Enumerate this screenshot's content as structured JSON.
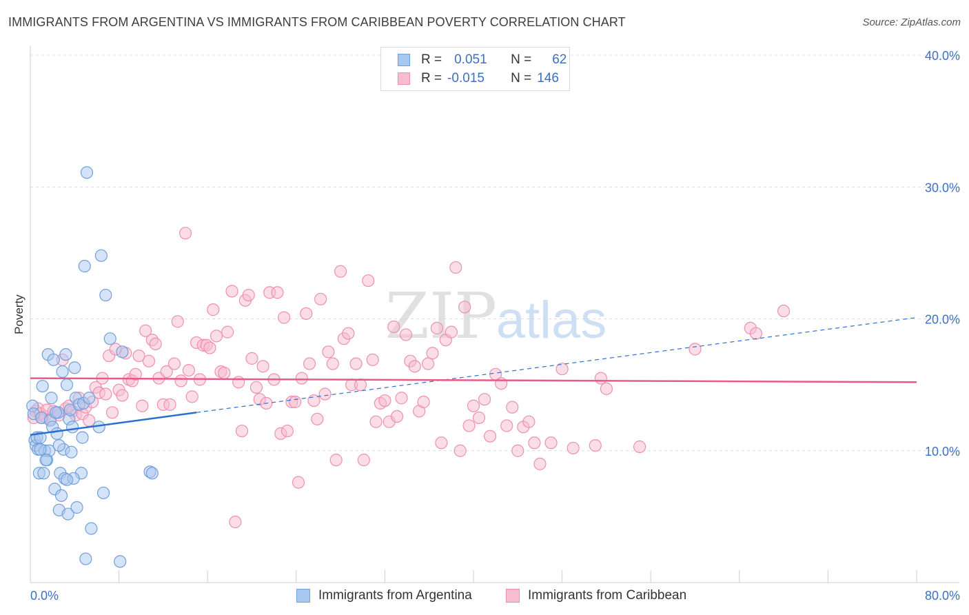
{
  "title": "IMMIGRANTS FROM ARGENTINA VS IMMIGRANTS FROM CARIBBEAN POVERTY CORRELATION CHART",
  "source": "Source: ZipAtlas.com",
  "watermark": {
    "zip": "ZIP",
    "atlas": "atlas"
  },
  "colors": {
    "argentina_fill": "#a9c8f0",
    "argentina_stroke": "#6f9fdc",
    "argentina_line": "#2a6fd0",
    "caribbean_fill": "#f7bcd0",
    "caribbean_stroke": "#ee8fae",
    "caribbean_line": "#e8588a",
    "axis_label": "#3a6fc4"
  },
  "legend": {
    "r_label": "R =",
    "n_label": "N =",
    "argentina": {
      "r": "0.051",
      "n": "62"
    },
    "caribbean": {
      "r": "-0.015",
      "n": "146"
    }
  },
  "series_labels": {
    "argentina": "Immigrants from Argentina",
    "caribbean": "Immigrants from Caribbean"
  },
  "chart_data": {
    "type": "scatter",
    "ylabel": "Poverty",
    "xlim": [
      0,
      80
    ],
    "ylim": [
      0,
      40
    ],
    "x_ticks_labels": [
      "0.0%",
      "80.0%"
    ],
    "y_ticks": [
      10,
      20,
      30,
      40
    ],
    "y_ticks_labels": [
      "10.0%",
      "20.0%",
      "30.0%",
      "40.0%"
    ],
    "grid": true,
    "series": [
      {
        "name": "Immigrants from Argentina",
        "trend": {
          "x0": 0,
          "y0": 11.2,
          "x1": 15,
          "y1": 12.9,
          "dashed_to_x": 80,
          "dashed_to_y": 20.1
        },
        "points": [
          [
            0.2,
            13.4
          ],
          [
            0.3,
            12.8
          ],
          [
            0.4,
            10.8
          ],
          [
            0.5,
            10.4
          ],
          [
            0.6,
            11.0
          ],
          [
            0.7,
            10.1
          ],
          [
            0.8,
            8.3
          ],
          [
            0.9,
            11.0
          ],
          [
            1.0,
            12.5
          ],
          [
            1.1,
            14.9
          ],
          [
            1.2,
            8.3
          ],
          [
            1.3,
            10.0
          ],
          [
            1.5,
            9.3
          ],
          [
            1.6,
            17.3
          ],
          [
            1.7,
            10.0
          ],
          [
            1.8,
            12.3
          ],
          [
            1.9,
            14.0
          ],
          [
            2.0,
            11.8
          ],
          [
            2.1,
            16.9
          ],
          [
            2.2,
            7.1
          ],
          [
            2.4,
            11.3
          ],
          [
            2.5,
            12.9
          ],
          [
            2.6,
            5.5
          ],
          [
            2.7,
            8.3
          ],
          [
            2.8,
            6.6
          ],
          [
            2.9,
            16.0
          ],
          [
            3.0,
            10.1
          ],
          [
            3.1,
            7.9
          ],
          [
            3.2,
            17.3
          ],
          [
            3.3,
            15.0
          ],
          [
            3.4,
            5.2
          ],
          [
            3.5,
            12.4
          ],
          [
            3.6,
            13.1
          ],
          [
            3.7,
            9.9
          ],
          [
            3.8,
            11.8
          ],
          [
            4.0,
            16.3
          ],
          [
            4.1,
            14.0
          ],
          [
            4.2,
            5.7
          ],
          [
            4.4,
            13.5
          ],
          [
            4.6,
            8.3
          ],
          [
            4.7,
            11.0
          ],
          [
            4.8,
            13.6
          ],
          [
            5.1,
            31.1
          ],
          [
            5.3,
            14.0
          ],
          [
            5.5,
            4.1
          ],
          [
            6.2,
            11.8
          ],
          [
            6.4,
            24.8
          ],
          [
            6.6,
            6.8
          ],
          [
            6.8,
            21.8
          ],
          [
            7.2,
            18.5
          ],
          [
            8.1,
            1.6
          ],
          [
            8.3,
            17.5
          ],
          [
            10.8,
            8.4
          ],
          [
            11.0,
            8.3
          ],
          [
            5.0,
            1.8
          ],
          [
            2.3,
            12.9
          ],
          [
            3.9,
            7.9
          ],
          [
            0.9,
            10.1
          ],
          [
            1.4,
            9.3
          ],
          [
            2.6,
            10.4
          ],
          [
            4.9,
            24.0
          ],
          [
            3.3,
            7.8
          ]
        ]
      },
      {
        "name": "Immigrants from Caribbean",
        "trend": {
          "x0": 0,
          "y0": 15.5,
          "x1": 80,
          "y1": 15.2
        },
        "points": [
          [
            0.3,
            12.5
          ],
          [
            0.5,
            13.0
          ],
          [
            0.7,
            13.2
          ],
          [
            0.9,
            12.8
          ],
          [
            1.1,
            12.5
          ],
          [
            1.3,
            12.6
          ],
          [
            1.5,
            13.1
          ],
          [
            1.8,
            12.4
          ],
          [
            2.1,
            13.0
          ],
          [
            2.3,
            12.9
          ],
          [
            2.6,
            12.7
          ],
          [
            2.9,
            16.9
          ],
          [
            3.2,
            13.2
          ],
          [
            3.5,
            13.4
          ],
          [
            3.8,
            13.0
          ],
          [
            4.1,
            12.7
          ],
          [
            4.4,
            14.0
          ],
          [
            4.7,
            12.8
          ],
          [
            5.0,
            13.3
          ],
          [
            5.3,
            12.3
          ],
          [
            5.6,
            13.7
          ],
          [
            5.9,
            14.8
          ],
          [
            6.2,
            14.4
          ],
          [
            6.5,
            15.5
          ],
          [
            6.8,
            14.3
          ],
          [
            7.1,
            17.2
          ],
          [
            7.4,
            12.9
          ],
          [
            7.7,
            17.7
          ],
          [
            8.0,
            14.6
          ],
          [
            8.3,
            14.2
          ],
          [
            8.6,
            17.4
          ],
          [
            8.9,
            15.4
          ],
          [
            9.2,
            15.3
          ],
          [
            9.5,
            15.8
          ],
          [
            9.8,
            17.2
          ],
          [
            10.1,
            13.4
          ],
          [
            10.4,
            19.1
          ],
          [
            10.7,
            16.8
          ],
          [
            11.0,
            18.4
          ],
          [
            11.3,
            18.1
          ],
          [
            11.6,
            15.5
          ],
          [
            12.0,
            13.5
          ],
          [
            12.3,
            16.0
          ],
          [
            12.6,
            13.5
          ],
          [
            13.0,
            16.6
          ],
          [
            13.3,
            19.8
          ],
          [
            13.6,
            15.3
          ],
          [
            14.0,
            26.5
          ],
          [
            14.3,
            16.1
          ],
          [
            14.6,
            14.1
          ],
          [
            15.0,
            18.2
          ],
          [
            15.3,
            15.4
          ],
          [
            15.6,
            18.0
          ],
          [
            15.9,
            18.0
          ],
          [
            16.2,
            17.8
          ],
          [
            16.5,
            20.7
          ],
          [
            16.8,
            18.7
          ],
          [
            17.2,
            16.0
          ],
          [
            17.5,
            15.9
          ],
          [
            17.8,
            19.0
          ],
          [
            18.2,
            22.1
          ],
          [
            18.5,
            4.6
          ],
          [
            18.8,
            15.2
          ],
          [
            19.1,
            11.5
          ],
          [
            19.4,
            21.4
          ],
          [
            19.7,
            21.8
          ],
          [
            20.0,
            17.0
          ],
          [
            20.4,
            14.8
          ],
          [
            20.7,
            13.9
          ],
          [
            21.0,
            16.4
          ],
          [
            21.3,
            13.6
          ],
          [
            21.6,
            22.0
          ],
          [
            22.0,
            15.4
          ],
          [
            22.3,
            22.0
          ],
          [
            22.6,
            11.3
          ],
          [
            22.9,
            20.1
          ],
          [
            23.2,
            11.5
          ],
          [
            23.6,
            13.7
          ],
          [
            23.9,
            13.7
          ],
          [
            24.2,
            7.6
          ],
          [
            24.5,
            15.5
          ],
          [
            24.9,
            20.4
          ],
          [
            25.2,
            16.6
          ],
          [
            25.6,
            13.8
          ],
          [
            25.9,
            12.4
          ],
          [
            26.2,
            21.5
          ],
          [
            26.6,
            14.3
          ],
          [
            26.9,
            17.5
          ],
          [
            27.3,
            16.6
          ],
          [
            27.6,
            9.3
          ],
          [
            28.0,
            23.6
          ],
          [
            28.3,
            18.5
          ],
          [
            28.7,
            18.9
          ],
          [
            29.0,
            15.0
          ],
          [
            29.4,
            16.6
          ],
          [
            29.8,
            15.0
          ],
          [
            30.1,
            9.3
          ],
          [
            30.5,
            22.9
          ],
          [
            30.9,
            16.9
          ],
          [
            31.2,
            12.2
          ],
          [
            31.6,
            13.6
          ],
          [
            32.0,
            13.8
          ],
          [
            32.4,
            12.2
          ],
          [
            32.8,
            19.4
          ],
          [
            33.1,
            12.6
          ],
          [
            33.5,
            14.0
          ],
          [
            33.9,
            18.8
          ],
          [
            34.3,
            16.8
          ],
          [
            34.7,
            16.4
          ],
          [
            35.1,
            13.0
          ],
          [
            35.5,
            13.7
          ],
          [
            35.9,
            16.6
          ],
          [
            36.3,
            17.4
          ],
          [
            36.7,
            19.3
          ],
          [
            37.1,
            10.6
          ],
          [
            37.5,
            18.4
          ],
          [
            38.0,
            19.0
          ],
          [
            38.4,
            23.9
          ],
          [
            38.8,
            10.0
          ],
          [
            39.2,
            20.9
          ],
          [
            39.6,
            11.9
          ],
          [
            40.0,
            13.4
          ],
          [
            40.5,
            12.5
          ],
          [
            41.0,
            13.9
          ],
          [
            41.5,
            11.1
          ],
          [
            42.0,
            15.8
          ],
          [
            42.5,
            15.1
          ],
          [
            43.0,
            11.9
          ],
          [
            43.5,
            13.3
          ],
          [
            44.0,
            10.0
          ],
          [
            44.5,
            11.8
          ],
          [
            45.0,
            12.2
          ],
          [
            45.5,
            10.6
          ],
          [
            46.0,
            9.0
          ],
          [
            47.0,
            10.6
          ],
          [
            48.0,
            16.2
          ],
          [
            49.0,
            10.2
          ],
          [
            51.0,
            10.4
          ],
          [
            52.0,
            14.7
          ],
          [
            55.0,
            10.3
          ],
          [
            60.0,
            17.7
          ],
          [
            65.0,
            19.3
          ],
          [
            65.5,
            18.9
          ],
          [
            68.0,
            20.6
          ],
          [
            51.5,
            15.5
          ]
        ]
      }
    ]
  }
}
